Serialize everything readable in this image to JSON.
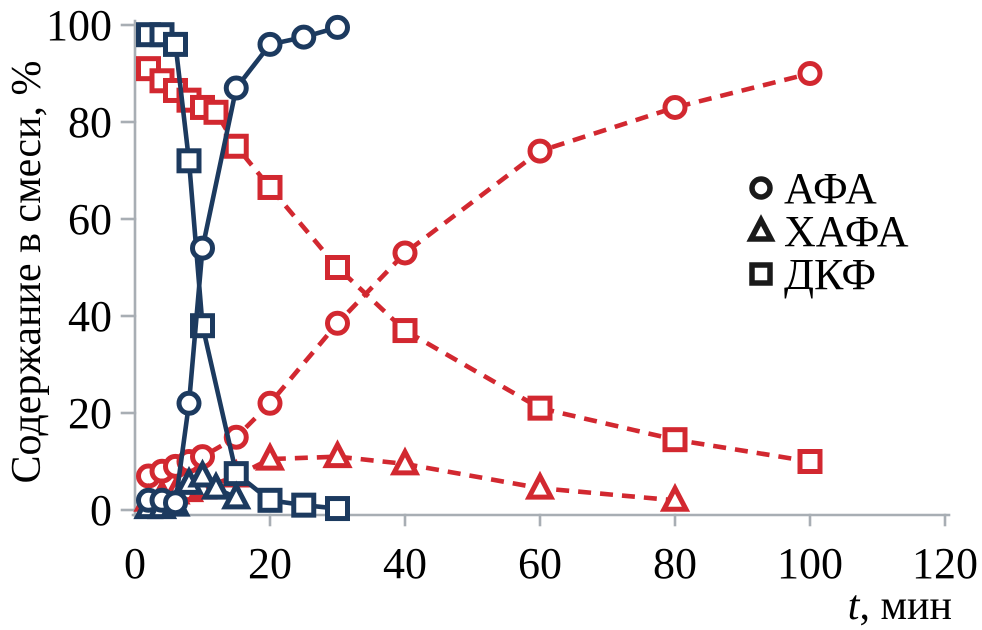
{
  "figure": {
    "ylabel": "Содержание в смеси, %",
    "xlabel_italic": "t",
    "xlabel_rest": ", мин"
  },
  "colors": {
    "navy": "#1c3a5f",
    "red": "#d22830",
    "axis": "#a8aeb4",
    "text": "#000000"
  },
  "chart_data": {
    "type": "line",
    "title": "",
    "xlabel": "t, мин",
    "ylabel": "Содержание в смеси, %",
    "xlim": [
      0,
      120
    ],
    "ylim": [
      0,
      100
    ],
    "x_ticks": [
      0,
      20,
      40,
      60,
      80,
      100,
      120
    ],
    "y_ticks": [
      0,
      20,
      40,
      60,
      80,
      100
    ],
    "grid": false,
    "legend_position": "right",
    "legend": [
      {
        "label": "АФА",
        "marker": "circle"
      },
      {
        "label": "ХАФА",
        "marker": "triangle"
      },
      {
        "label": "ДКФ",
        "marker": "square"
      }
    ],
    "series": [
      {
        "id": "dkf-red",
        "name": "ДКФ (red dashed)",
        "marker": "square",
        "color": "red",
        "dash": true,
        "points": [
          [
            2,
            91
          ],
          [
            4,
            88.5
          ],
          [
            6,
            86.5
          ],
          [
            8,
            84.5
          ],
          [
            10,
            83
          ],
          [
            12,
            82
          ],
          [
            15,
            75
          ],
          [
            20,
            66.5
          ],
          [
            30,
            50
          ],
          [
            40,
            37
          ],
          [
            60,
            21
          ],
          [
            80,
            14.5
          ],
          [
            100,
            10
          ]
        ]
      },
      {
        "id": "afa-red",
        "name": "АФА (red dashed)",
        "marker": "circle",
        "color": "red",
        "dash": true,
        "points": [
          [
            2,
            7
          ],
          [
            4,
            8
          ],
          [
            6,
            9
          ],
          [
            8,
            10
          ],
          [
            10,
            11
          ],
          [
            15,
            15
          ],
          [
            20,
            22
          ],
          [
            30,
            38.5
          ],
          [
            40,
            53
          ],
          [
            60,
            74
          ],
          [
            80,
            83
          ],
          [
            100,
            90
          ]
        ]
      },
      {
        "id": "hafa-red",
        "name": "ХАФА (red dashed)",
        "marker": "triangle",
        "color": "red",
        "dash": true,
        "points": [
          [
            2,
            2
          ],
          [
            4,
            3
          ],
          [
            6,
            3.5
          ],
          [
            8,
            4
          ],
          [
            10,
            4.5
          ],
          [
            15,
            7
          ],
          [
            20,
            10.5
          ],
          [
            30,
            11
          ],
          [
            40,
            9.5
          ],
          [
            60,
            4.5
          ],
          [
            80,
            2
          ]
        ]
      },
      {
        "id": "dkf-navy",
        "name": "ДКФ (navy solid)",
        "marker": "square",
        "color": "navy",
        "dash": false,
        "points": [
          [
            2,
            98
          ],
          [
            4,
            98
          ],
          [
            6,
            96
          ],
          [
            8,
            72
          ],
          [
            10,
            38
          ],
          [
            15,
            7.5
          ],
          [
            20,
            2
          ],
          [
            25,
            1
          ],
          [
            30,
            0.3
          ]
        ]
      },
      {
        "id": "hafa-navy",
        "name": "ХАФА (navy solid)",
        "marker": "triangle",
        "color": "navy",
        "dash": false,
        "points": [
          [
            2,
            0.5
          ],
          [
            4,
            0.5
          ],
          [
            6,
            1
          ],
          [
            8,
            5.5
          ],
          [
            10,
            7
          ],
          [
            12,
            4.5
          ],
          [
            15,
            2.5
          ]
        ]
      },
      {
        "id": "afa-navy",
        "name": "АФА (navy solid)",
        "marker": "circle",
        "color": "navy",
        "dash": false,
        "points": [
          [
            2,
            2
          ],
          [
            4,
            2
          ],
          [
            6,
            1.5
          ],
          [
            8,
            22
          ],
          [
            10,
            54
          ],
          [
            15,
            87
          ],
          [
            20,
            96
          ],
          [
            25,
            97.5
          ],
          [
            30,
            99.5
          ]
        ]
      }
    ]
  }
}
